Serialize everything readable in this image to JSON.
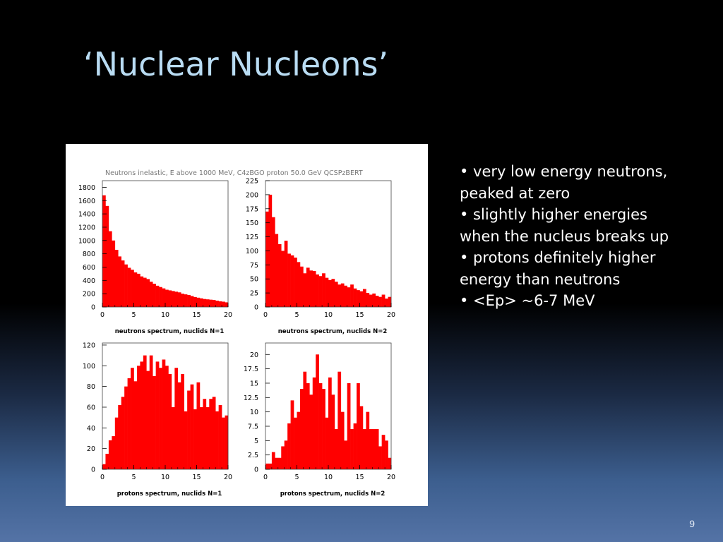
{
  "slide": {
    "title": "‘Nuclear Nucleons’",
    "page_number": "9",
    "bullets": [
      "• very low energy neutrons,\npeaked at zero",
      "• slightly higher energies\nwhen the nucleus breaks up",
      "• protons definitely higher\nenergy than neutrons",
      "• <Ep> ~6-7 MeV"
    ]
  },
  "figure": {
    "header": "Neutrons inelastic, E above 1000 MeV,  C4zBGO proton 50.0 GeV QCSPzBERT"
  },
  "colors": {
    "bars": "#ff0000",
    "title": "#b9dcf3",
    "axes": "#000000"
  },
  "chart_data": [
    {
      "type": "bar",
      "title": "neutrons spectrum, nuclids N=1",
      "xlim": [
        0,
        20
      ],
      "ylim": [
        0,
        1900
      ],
      "xticks": [
        "0",
        "5",
        "10",
        "15",
        "20"
      ],
      "yticks": [
        "0",
        "200",
        "400",
        "600",
        "800",
        "1000",
        "1200",
        "1400",
        "1600",
        "1800"
      ],
      "bin_width": 0.5,
      "values": [
        1680,
        1520,
        1140,
        1000,
        860,
        760,
        700,
        640,
        590,
        560,
        520,
        500,
        460,
        440,
        420,
        380,
        350,
        320,
        300,
        280,
        260,
        250,
        240,
        230,
        220,
        200,
        190,
        180,
        165,
        150,
        140,
        130,
        120,
        115,
        110,
        105,
        95,
        85,
        80,
        70
      ]
    },
    {
      "type": "bar",
      "title": "neutrons spectrum, nuclids N=2",
      "xlim": [
        0,
        20
      ],
      "ylim": [
        0,
        225
      ],
      "xticks": [
        "0",
        "5",
        "10",
        "15",
        "20"
      ],
      "yticks": [
        "0",
        "25",
        "50",
        "75",
        "100",
        "125",
        "150",
        "175",
        "200",
        "225"
      ],
      "bin_width": 0.5,
      "values": [
        170,
        200,
        160,
        130,
        112,
        100,
        118,
        95,
        92,
        88,
        80,
        72,
        60,
        70,
        65,
        64,
        58,
        55,
        60,
        52,
        48,
        50,
        45,
        40,
        42,
        38,
        35,
        40,
        33,
        30,
        28,
        32,
        25,
        22,
        24,
        20,
        18,
        22,
        15,
        18
      ]
    },
    {
      "type": "bar",
      "title": "protons spectrum, nuclids N=1",
      "xlim": [
        0,
        20
      ],
      "ylim": [
        0,
        122
      ],
      "xticks": [
        "0",
        "5",
        "10",
        "15",
        "20"
      ],
      "yticks": [
        "0",
        "20",
        "40",
        "60",
        "80",
        "100",
        "120"
      ],
      "bin_width": 0.5,
      "values": [
        5,
        15,
        28,
        32,
        50,
        62,
        70,
        80,
        88,
        98,
        85,
        100,
        104,
        110,
        95,
        110,
        90,
        104,
        98,
        106,
        100,
        92,
        60,
        98,
        84,
        92,
        56,
        76,
        82,
        58,
        84,
        60,
        68,
        60,
        68,
        70,
        56,
        62,
        50,
        52
      ]
    },
    {
      "type": "bar",
      "title": "protons spectrum, nuclids N=2",
      "xlim": [
        0,
        20
      ],
      "ylim": [
        0,
        22
      ],
      "xticks": [
        "0",
        "5",
        "10",
        "15",
        "20"
      ],
      "yticks": [
        "0",
        "2.5",
        "5",
        "7.5",
        "10",
        "12.5",
        "15",
        "17.5",
        "20"
      ],
      "bin_width": 0.5,
      "values": [
        1,
        1,
        3,
        2,
        2,
        4,
        5,
        8,
        12,
        9,
        10,
        14,
        17,
        15,
        13,
        16,
        20,
        15,
        14,
        9,
        16,
        13,
        7,
        17,
        10,
        5,
        15,
        7,
        8,
        15,
        11,
        7,
        10,
        7,
        7,
        7,
        4,
        6,
        5,
        2
      ]
    }
  ]
}
